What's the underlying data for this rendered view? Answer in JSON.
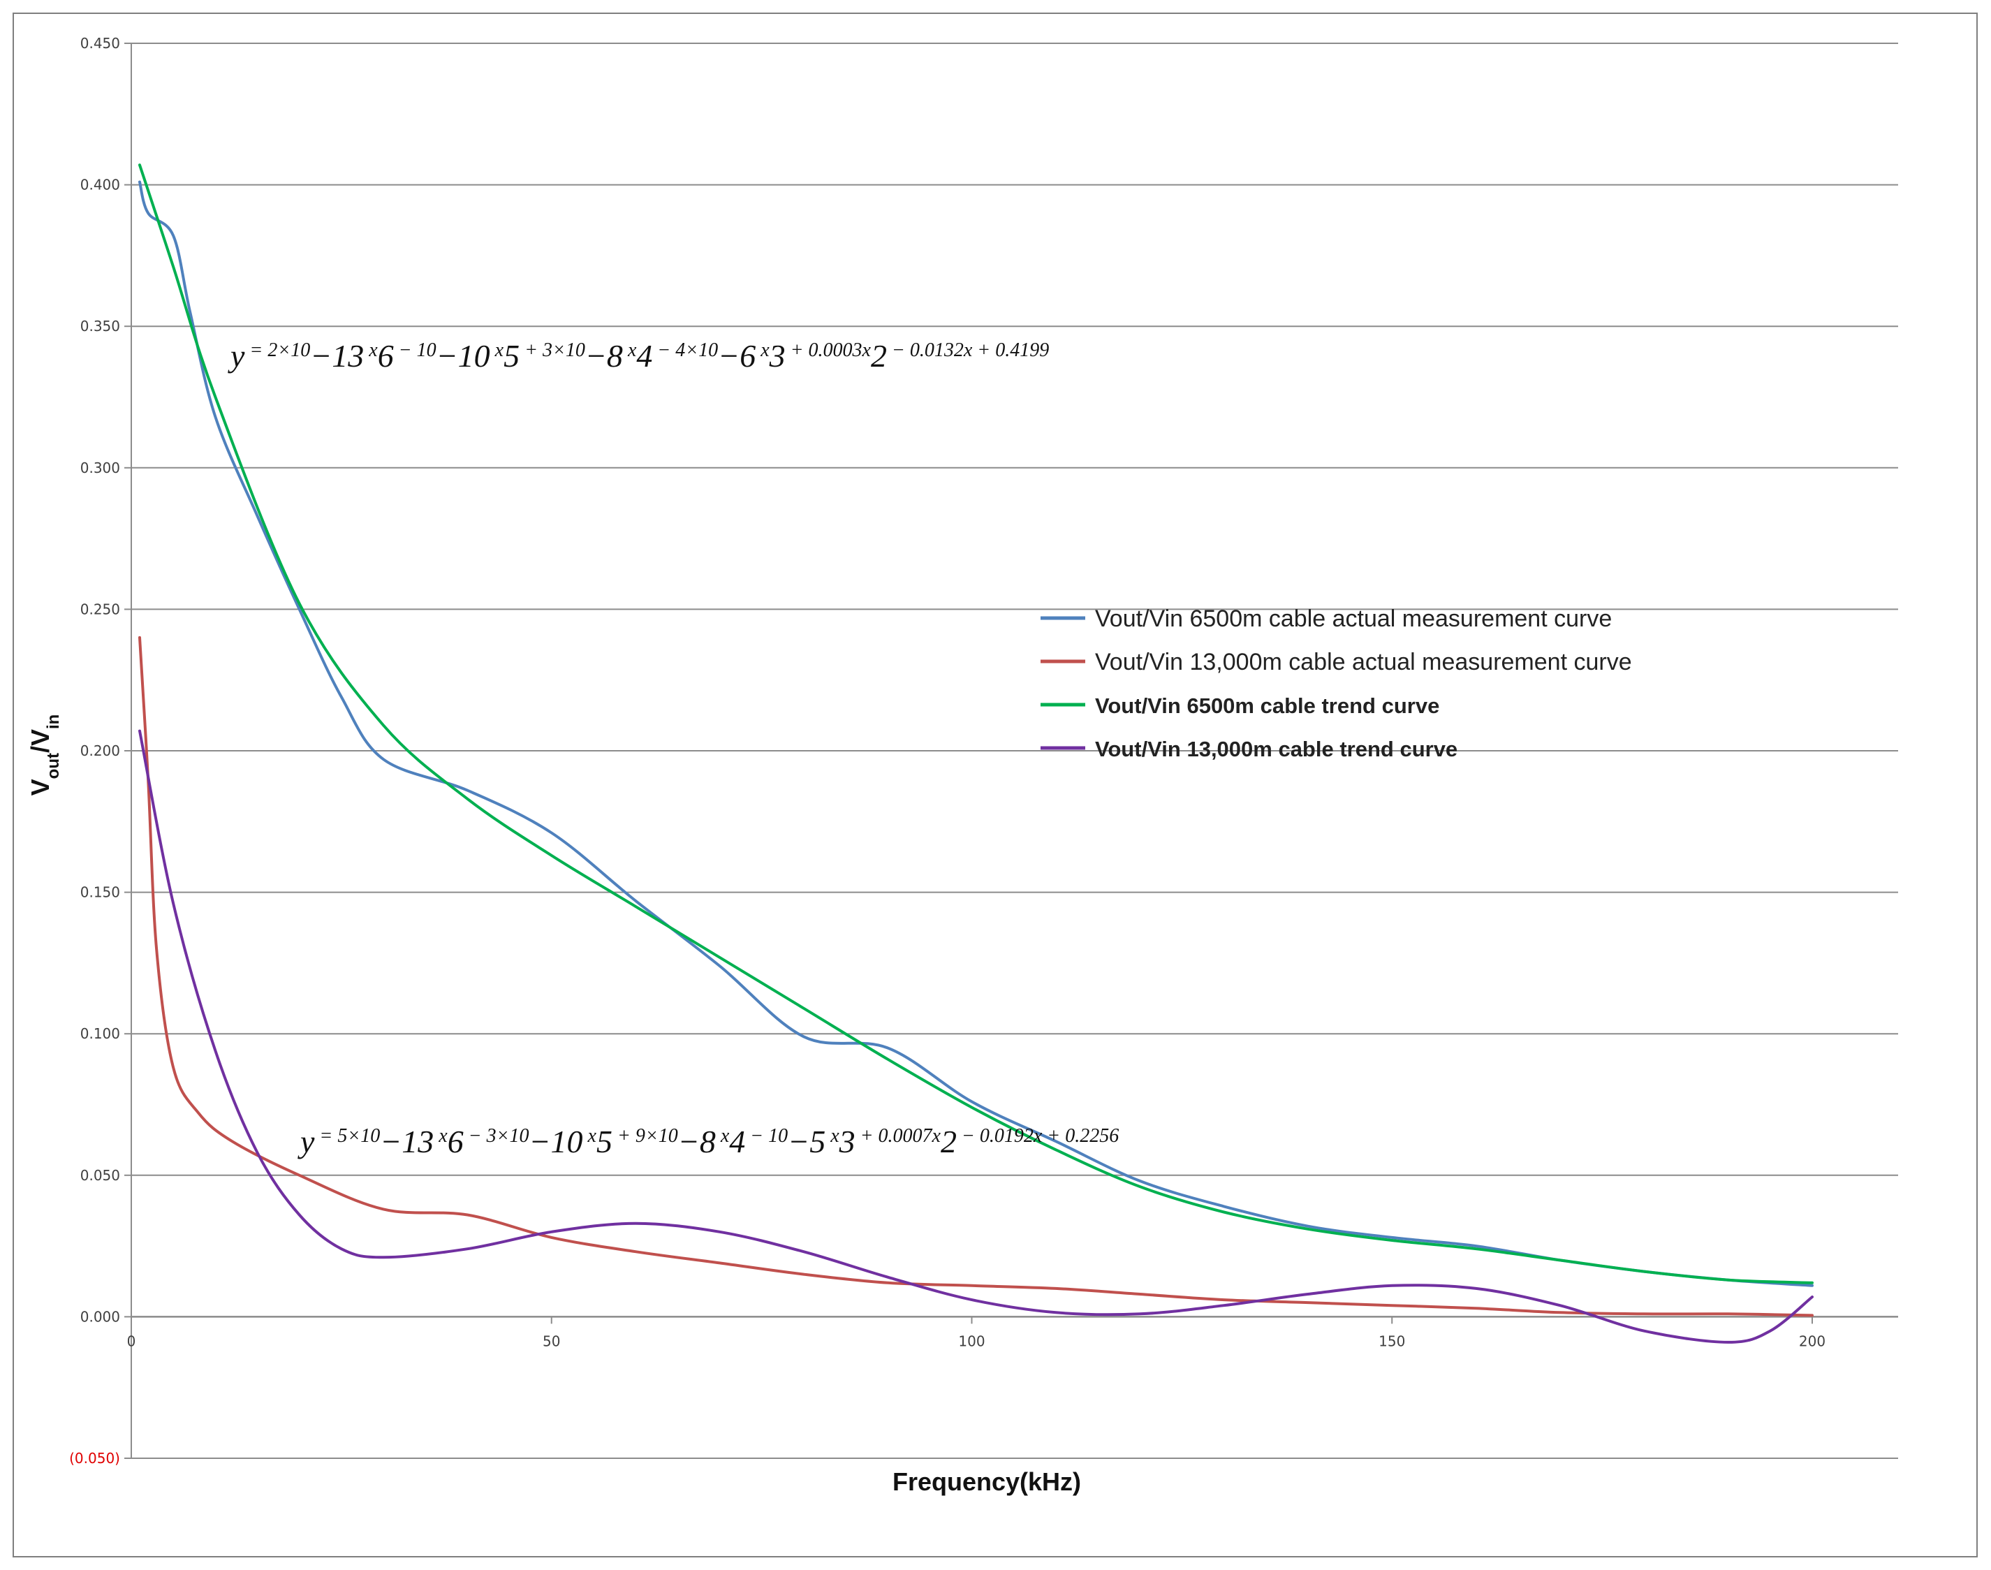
{
  "chart_data": {
    "type": "line",
    "xlabel": "Frequency(kHz)",
    "ylabel": {
      "main": "V",
      "sub_out": "out",
      "slash": "/V",
      "sub_in": "in"
    },
    "xlim": [
      0,
      210
    ],
    "ylim": [
      -0.05,
      0.45
    ],
    "x_ticks": [
      0,
      50,
      100,
      150,
      200
    ],
    "x_tick_labels": [
      "0",
      "50",
      "100",
      "150",
      "200"
    ],
    "y_ticks": [
      -0.05,
      0,
      0.05,
      0.1,
      0.15,
      0.2,
      0.25,
      0.3,
      0.35,
      0.4,
      0.45
    ],
    "y_tick_labels": [
      "(0.050)",
      "0.000",
      "0.050",
      "0.100",
      "0.150",
      "0.200",
      "0.250",
      "0.300",
      "0.350",
      "0.400",
      "0.450"
    ],
    "grid": "horizontal",
    "legend_position": "right-middle",
    "series": [
      {
        "name": "Vout/Vin 6500m cable actual measurement curve",
        "color": "#4f81bd",
        "legend_bold": false,
        "points": [
          [
            1,
            0.401
          ],
          [
            2,
            0.39
          ],
          [
            5,
            0.382
          ],
          [
            7,
            0.355
          ],
          [
            10,
            0.318
          ],
          [
            15,
            0.283
          ],
          [
            20,
            0.25
          ],
          [
            25,
            0.219
          ],
          [
            30,
            0.197
          ],
          [
            40,
            0.186
          ],
          [
            50,
            0.171
          ],
          [
            60,
            0.147
          ],
          [
            70,
            0.124
          ],
          [
            80,
            0.099
          ],
          [
            90,
            0.095
          ],
          [
            100,
            0.076
          ],
          [
            110,
            0.062
          ],
          [
            120,
            0.048
          ],
          [
            130,
            0.039
          ],
          [
            140,
            0.032
          ],
          [
            150,
            0.028
          ],
          [
            160,
            0.025
          ],
          [
            170,
            0.02
          ],
          [
            180,
            0.016
          ],
          [
            190,
            0.013
          ],
          [
            200,
            0.011
          ]
        ]
      },
      {
        "name": "Vout/Vin 13,000m cable actual measurement curve",
        "color": "#c0504d",
        "legend_bold": false,
        "points": [
          [
            1,
            0.24
          ],
          [
            2,
            0.19
          ],
          [
            3,
            0.13
          ],
          [
            5,
            0.088
          ],
          [
            8,
            0.072
          ],
          [
            12,
            0.062
          ],
          [
            20,
            0.05
          ],
          [
            30,
            0.038
          ],
          [
            40,
            0.036
          ],
          [
            50,
            0.028
          ],
          [
            60,
            0.023
          ],
          [
            70,
            0.019
          ],
          [
            80,
            0.015
          ],
          [
            90,
            0.012
          ],
          [
            100,
            0.011
          ],
          [
            110,
            0.01
          ],
          [
            120,
            0.008
          ],
          [
            130,
            0.006
          ],
          [
            140,
            0.005
          ],
          [
            150,
            0.004
          ],
          [
            160,
            0.003
          ],
          [
            170,
            0.0015
          ],
          [
            180,
            0.001
          ],
          [
            190,
            0.001
          ],
          [
            200,
            0.0005
          ]
        ]
      },
      {
        "name": "Vout/Vin 6500m cable trend curve",
        "color": "#00b050",
        "legend_bold": true,
        "equation": [
          "y",
          " = 2×10",
          "−13",
          " x",
          "6",
          " − 10",
          "−10",
          " x",
          "5",
          " + 3×10",
          "−8",
          " x",
          "4",
          " − 4×10",
          "−6",
          " x",
          "3",
          " + 0.0003x",
          "2",
          " − 0.0132x + 0.4199"
        ]
      },
      {
        "name": "Vout/Vin 13,000m cable trend curve",
        "color": "#7030a0",
        "legend_bold": true,
        "equation": [
          "y",
          " = 5×10",
          "−13",
          " x",
          "6",
          " − 3×10",
          "−10",
          " x",
          "5",
          " + 9×10",
          "−8",
          " x",
          "4",
          " − 10",
          "−5",
          " x",
          "3",
          " + 0.0007x",
          "2",
          " − 0.0192x + 0.2256"
        ]
      }
    ]
  }
}
